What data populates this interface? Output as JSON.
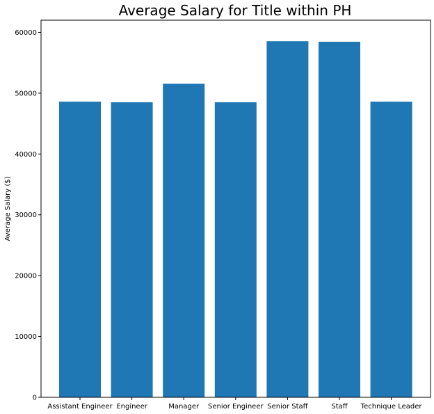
{
  "chart_data": {
    "type": "bar",
    "title": "Average Salary for Title within PH",
    "xlabel": "",
    "ylabel": "Average Salary ($)",
    "categories": [
      "Assistant Engineer",
      "Engineer",
      "Manager",
      "Senior Engineer",
      "Senior Staff",
      "Staff",
      "Technique Leader"
    ],
    "values": [
      48600,
      48500,
      51550,
      48500,
      58550,
      58450,
      48600
    ],
    "ylim": [
      0,
      62000
    ],
    "yticks": [
      0,
      10000,
      20000,
      30000,
      40000,
      50000,
      60000
    ],
    "grid": false,
    "bar_color": "#1f77b4"
  }
}
